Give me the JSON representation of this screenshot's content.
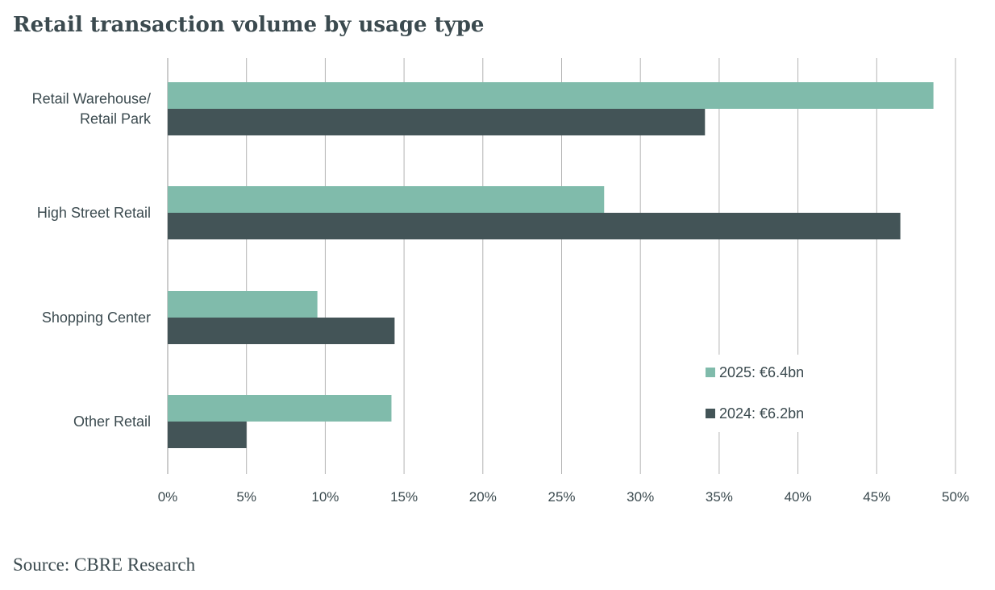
{
  "title": "Retail transaction volume by usage type",
  "source": "Source: CBRE Research",
  "chart_data": {
    "type": "bar",
    "orientation": "horizontal",
    "categories": [
      [
        "Retail Warehouse/",
        "Retail Park"
      ],
      [
        "High Street Retail"
      ],
      [
        "Shopping Center"
      ],
      [
        "Other Retail"
      ]
    ],
    "series": [
      {
        "name": "2025: €6.4bn",
        "color": "#80bbab",
        "values": [
          48.6,
          27.7,
          9.5,
          14.2
        ]
      },
      {
        "name": "2024: €6.2bn",
        "color": "#435457",
        "values": [
          34.1,
          46.5,
          14.4,
          5.0
        ]
      }
    ],
    "xlim": [
      0,
      50
    ],
    "ticks": [
      0,
      5,
      10,
      15,
      20,
      25,
      30,
      35,
      40,
      45,
      50
    ],
    "tick_labels": [
      "0%",
      "5%",
      "10%",
      "15%",
      "20%",
      "25%",
      "30%",
      "35%",
      "40%",
      "45%",
      "50%"
    ],
    "grid": "vertical",
    "legend_position": "lower-right"
  }
}
